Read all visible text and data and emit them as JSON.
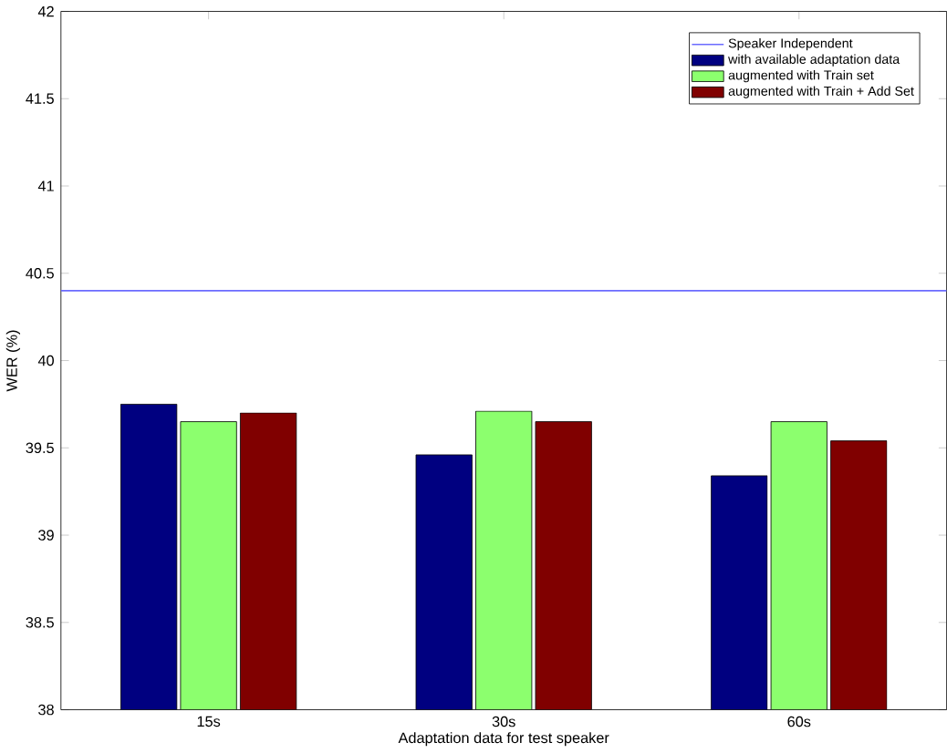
{
  "chart_data": {
    "type": "bar",
    "xlabel": "Adaptation data for test speaker",
    "ylabel": "WER (%)",
    "categories": [
      "15s",
      "30s",
      "60s"
    ],
    "series": [
      {
        "name": "with available adaptation data",
        "color": "#000080",
        "values": [
          39.75,
          39.46,
          39.34
        ]
      },
      {
        "name": "augmented with Train set",
        "color": "#8cff6e",
        "values": [
          39.65,
          39.71,
          39.65
        ]
      },
      {
        "name": "augmented with Train + Add Set",
        "color": "#800000",
        "values": [
          39.7,
          39.65,
          39.54
        ]
      }
    ],
    "ref_lines": [
      {
        "axis": "y",
        "value": 40.4,
        "label": "Speaker Independent",
        "color": "#6b6bff"
      }
    ],
    "ylim": [
      38,
      42
    ],
    "yticks": [
      38,
      38.5,
      39,
      39.5,
      40,
      40.5,
      41,
      41.5,
      42
    ],
    "legend": "top right",
    "grid": false
  }
}
